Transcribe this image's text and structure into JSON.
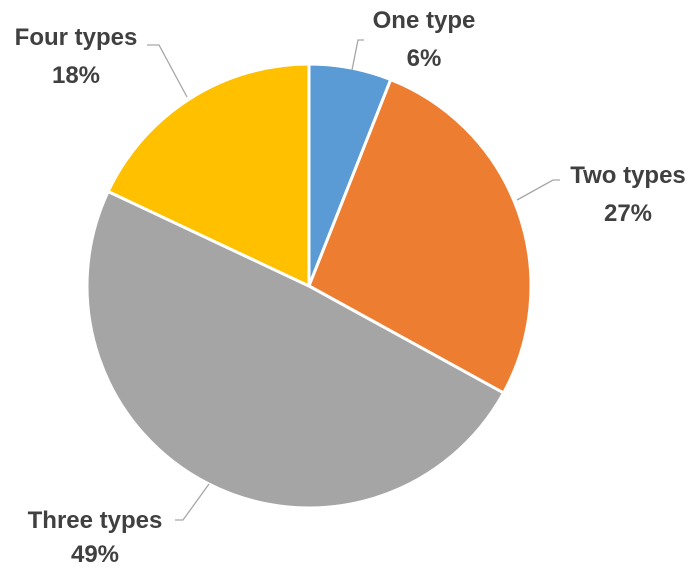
{
  "chart_data": {
    "type": "pie",
    "title": "",
    "slices": [
      {
        "label": "One type",
        "value": 6,
        "percent_label": "6%",
        "color": "#5B9BD5"
      },
      {
        "label": "Two types",
        "value": 27,
        "percent_label": "27%",
        "color": "#ED7D31"
      },
      {
        "label": "Three types",
        "value": 49,
        "percent_label": "49%",
        "color": "#A5A5A5"
      },
      {
        "label": "Four types",
        "value": 18,
        "percent_label": "18%",
        "color": "#FFC000"
      }
    ],
    "start_angle": "12 o'clock",
    "direction": "clockwise",
    "label_style": "outside with leader lines"
  }
}
